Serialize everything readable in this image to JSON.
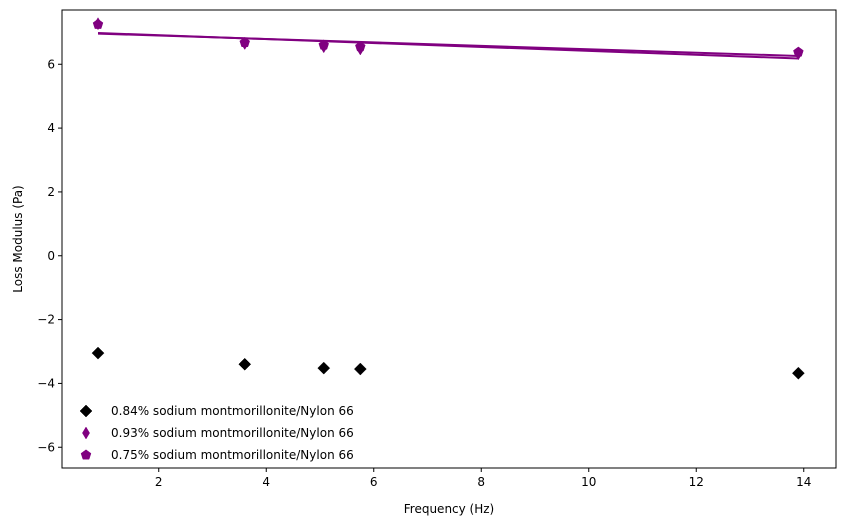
{
  "chart_data": {
    "type": "scatter",
    "title": "",
    "xlabel": "Frequency (Hz)",
    "ylabel": "Loss Modulus (Pa)",
    "xlim": [
      0.2,
      14.6
    ],
    "ylim": [
      -6.65,
      7.7
    ],
    "xticks": [
      2,
      4,
      6,
      8,
      10,
      12,
      14
    ],
    "yticks": [
      -6,
      -4,
      -2,
      0,
      2,
      4,
      6
    ],
    "x_tick_labels": [
      "2",
      "4",
      "6",
      "8",
      "10",
      "12",
      "14"
    ],
    "y_tick_labels": [
      "−6",
      "−4",
      "−2",
      "0",
      "2",
      "4",
      "6"
    ],
    "grid": false,
    "legend_position": "lower-left",
    "series": [
      {
        "name": "0.84% sodium montmorillonite/Nylon 66",
        "marker": "diamond",
        "color": "#000000",
        "x": [
          0.87,
          3.6,
          5.07,
          5.75,
          13.9
        ],
        "y": [
          -3.05,
          -3.4,
          -3.52,
          -3.55,
          -3.68
        ]
      },
      {
        "name": "0.93% sodium montmorillonite/Nylon 66",
        "marker": "thin-diamond",
        "color": "#800080",
        "x": [
          0.87,
          3.6,
          5.07,
          5.75,
          13.9
        ],
        "y": [
          7.27,
          6.65,
          6.55,
          6.48,
          6.33
        ],
        "trend": {
          "x": [
            0.87,
            13.9
          ],
          "y": [
            6.98,
            6.18
          ]
        }
      },
      {
        "name": "0.75% sodium montmorillonite/Nylon 66",
        "marker": "pentagon",
        "color": "#800080",
        "x": [
          0.87,
          3.6,
          5.07,
          5.75,
          13.9
        ],
        "y": [
          7.25,
          6.68,
          6.6,
          6.55,
          6.38
        ],
        "trend": {
          "x": [
            0.87,
            13.9
          ],
          "y": [
            6.96,
            6.26
          ]
        }
      }
    ]
  }
}
